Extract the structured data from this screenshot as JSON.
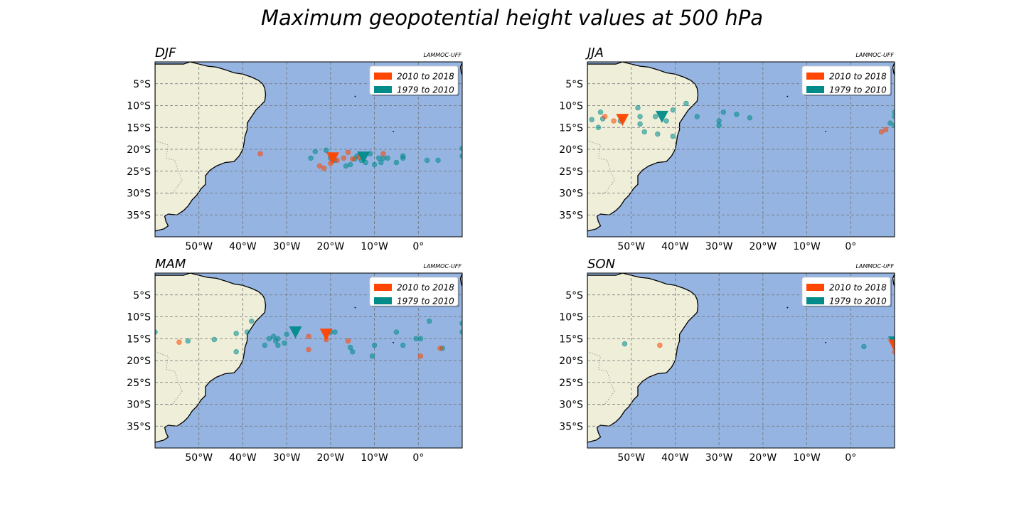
{
  "title": "Maximum geopotential height values at 500 hPa",
  "colors": {
    "ocean": "#95b4e1",
    "land": "#efeed9",
    "recent": "#ff4500",
    "past": "#008b8b",
    "grid": "#707070"
  },
  "chart_data": {
    "type": "scatter",
    "x_ticks": [
      "50°W",
      "40°W",
      "30°W",
      "20°W",
      "10°W",
      "0°"
    ],
    "y_ticks": [
      "5°S",
      "10°S",
      "15°S",
      "20°S",
      "25°S",
      "30°S",
      "35°S"
    ],
    "xlim": [
      -60,
      10
    ],
    "ylim": [
      -40,
      0
    ],
    "grid": true,
    "legend_position": "top-right",
    "legend": [
      {
        "label": "2010 to 2018",
        "color": "#ff4500"
      },
      {
        "label": "1979 to 2010",
        "color": "#008b8b"
      }
    ],
    "panels": [
      {
        "label": "DJF",
        "credit": "LAMMOC-UFF",
        "recent_points": [
          [
            -36,
            -21
          ],
          [
            -22.5,
            -23.8
          ],
          [
            -21.5,
            -24.3
          ],
          [
            -20,
            -23.2
          ],
          [
            -19.5,
            -21.5
          ],
          [
            -18.5,
            -22.5
          ],
          [
            -17,
            -22
          ],
          [
            -16,
            -20.7
          ],
          [
            -15,
            -22.2
          ],
          [
            -13.5,
            -21.8
          ],
          [
            -8,
            -21
          ]
        ],
        "past_points": [
          [
            -24.5,
            -22
          ],
          [
            -23.5,
            -20.5
          ],
          [
            -21,
            -20.2
          ],
          [
            -20,
            -22
          ],
          [
            -19,
            -22.5
          ],
          [
            -16.5,
            -23.8
          ],
          [
            -15.5,
            -23.5
          ],
          [
            -14.5,
            -22.2
          ],
          [
            -14,
            -21.5
          ],
          [
            -13,
            -22.5
          ],
          [
            -12,
            -23
          ],
          [
            -11,
            -21
          ],
          [
            -10,
            -23.5
          ],
          [
            -9,
            -22
          ],
          [
            -8.5,
            -23
          ],
          [
            -8,
            -22
          ],
          [
            -7,
            -22
          ],
          [
            -5,
            -23
          ],
          [
            -3.5,
            -21.5
          ],
          [
            -3.5,
            -22
          ],
          [
            2,
            -22.5
          ],
          [
            4.5,
            -22.5
          ],
          [
            10,
            -19.8
          ],
          [
            10,
            -21.5
          ]
        ],
        "recent_mean": [
          -19.5,
          -22
        ],
        "past_mean": [
          -12.5,
          -21.8
        ]
      },
      {
        "label": "JJA",
        "credit": "LAMMOC-UFF",
        "recent_points": [
          [
            -56,
            -12.5
          ],
          [
            -54,
            -13.5
          ],
          [
            -52,
            -13
          ],
          [
            8,
            -15.5
          ],
          [
            7,
            -16
          ]
        ],
        "past_points": [
          [
            -59,
            -13.2
          ],
          [
            -57,
            -11.5
          ],
          [
            -56.5,
            -13
          ],
          [
            -57.5,
            -15
          ],
          [
            -52.5,
            -13.5
          ],
          [
            -48.5,
            -10.5
          ],
          [
            -48,
            -12.5
          ],
          [
            -48,
            -14.2
          ],
          [
            -47,
            -16
          ],
          [
            -44.5,
            -12.5
          ],
          [
            -44,
            -16.5
          ],
          [
            -42,
            -13.5
          ],
          [
            -40.5,
            -11
          ],
          [
            -40.5,
            -17
          ],
          [
            -37.5,
            -9.5
          ],
          [
            -35,
            -12.5
          ],
          [
            -30,
            -13.5
          ],
          [
            -30,
            -14.5
          ],
          [
            -29,
            -11.5
          ],
          [
            -26,
            -12
          ],
          [
            -23,
            -12.8
          ],
          [
            9,
            -14
          ],
          [
            10,
            -11.5
          ],
          [
            10,
            -12.5
          ],
          [
            10,
            -14.5
          ]
        ],
        "recent_mean": [
          -52,
          -13.2
        ],
        "past_mean": [
          -43,
          -12.5
        ]
      },
      {
        "label": "MAM",
        "credit": "LAMMOC-UFF",
        "recent_points": [
          [
            -54.5,
            -15.8
          ],
          [
            -25,
            -14.5
          ],
          [
            -25,
            -17.5
          ],
          [
            -21,
            -15.2
          ],
          [
            -16,
            -15.5
          ],
          [
            0.5,
            -19
          ],
          [
            5,
            -17.2
          ]
        ],
        "past_points": [
          [
            -60,
            -13.5
          ],
          [
            -52.5,
            -15.5
          ],
          [
            -46.5,
            -15.2
          ],
          [
            -41.5,
            -13.8
          ],
          [
            -41.5,
            -18
          ],
          [
            -39,
            -13.5
          ],
          [
            -38,
            -11
          ],
          [
            -35,
            -16.5
          ],
          [
            -34,
            -15
          ],
          [
            -33,
            -14.5
          ],
          [
            -32.5,
            -15.5
          ],
          [
            -32,
            -16.5
          ],
          [
            -32,
            -15
          ],
          [
            -30.5,
            -16
          ],
          [
            -30,
            -14
          ],
          [
            -20,
            -13.5
          ],
          [
            -19,
            -13.5
          ],
          [
            -15.5,
            -17
          ],
          [
            -15,
            -18
          ],
          [
            -10.5,
            -19
          ],
          [
            -10,
            -16.5
          ],
          [
            -5,
            -13.5
          ],
          [
            -3.5,
            -16.5
          ],
          [
            -0.5,
            -15
          ],
          [
            0.5,
            -15
          ],
          [
            2.5,
            -11
          ],
          [
            5.5,
            -17.2
          ],
          [
            10,
            -11.5
          ],
          [
            10,
            -13.5
          ]
        ],
        "recent_mean": [
          -21,
          -14
        ],
        "past_mean": [
          -28,
          -13.5
        ]
      },
      {
        "label": "SON",
        "credit": "LAMMOC-UFF",
        "recent_points": [
          [
            -43.5,
            -16.5
          ],
          [
            10,
            -16.8
          ],
          [
            10,
            -18
          ]
        ],
        "past_points": [
          [
            -51.5,
            -16.2
          ],
          [
            3,
            -16.8
          ],
          [
            10,
            -16.5
          ],
          [
            10,
            -15
          ]
        ],
        "recent_mean": [
          10,
          -16.5
        ],
        "past_mean": [
          10,
          -15.8
        ]
      }
    ]
  }
}
